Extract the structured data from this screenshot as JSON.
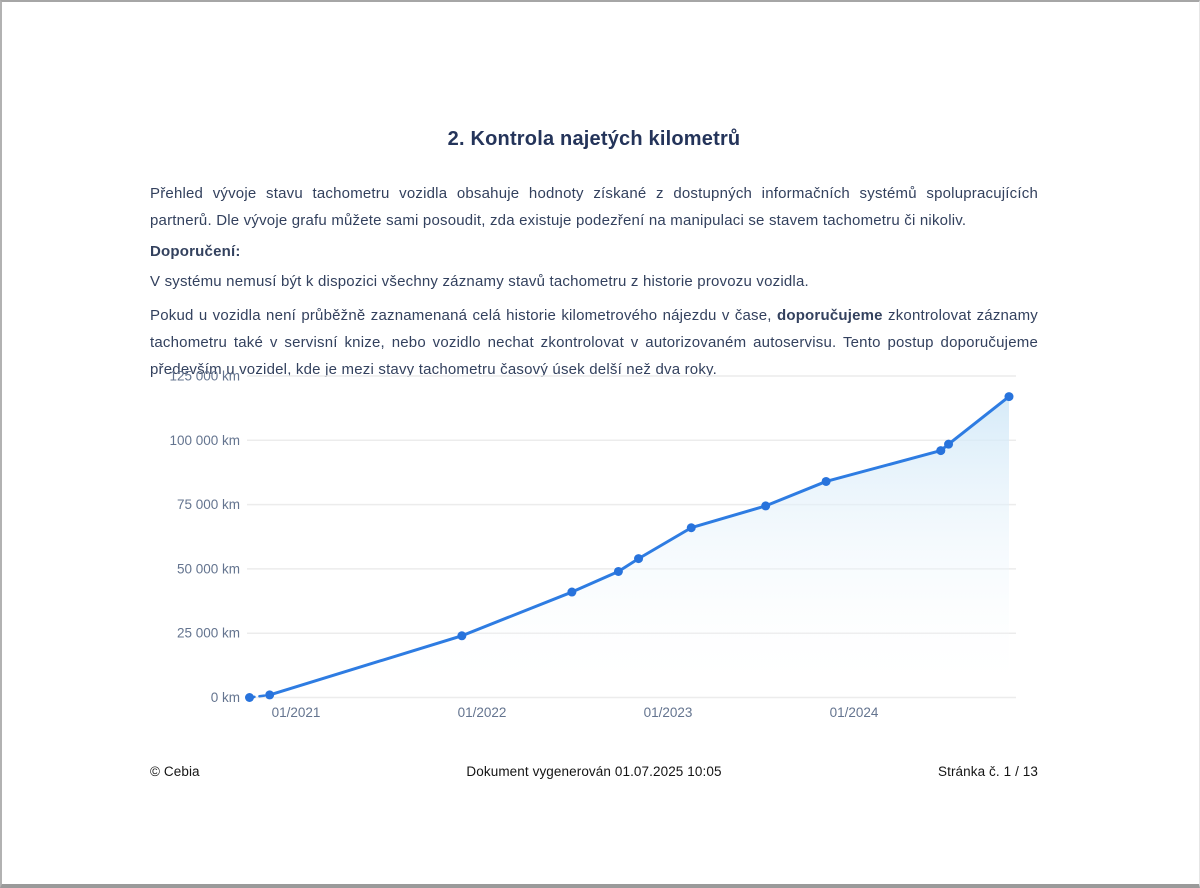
{
  "page": {
    "title": "2. Kontrola najetých kilometrů",
    "paragraphs": {
      "intro": "Přehled vývoje stavu tachometru vozidla obsahuje hodnoty získané z dostupných informačních systémů spolupracujících partnerů. Dle vývoje grafu můžete sami posoudit, zda existuje podezření na manipulaci se stavem tachometru či nikoliv.",
      "recommendation_label": "Doporučení:",
      "note": "V systému nemusí být k dispozici všechny záznamy stavů tachometru z historie provozu vozidla.",
      "advice_before": "Pokud u vozidla není průběžně zaznamenaná celá historie kilometrového nájezdu v čase, ",
      "advice_bold": "doporučujeme",
      "advice_after": " zkontrolovat záznamy tachometru také v servisní knize, nebo vozidlo nechat zkontrolovat v autorizovaném autoservisu. Tento postup doporučujeme především u vozidel, kde je mezi stavy tachometru časový úsek delší než dva roky."
    }
  },
  "footer": {
    "copyright": "© Cebia",
    "generated": "Dokument vygenerován 01.07.2025 10:05",
    "page_number": "Stránka č. 1 / 13"
  },
  "chart_data": {
    "type": "line",
    "title": "",
    "xlabel": "",
    "ylabel": "",
    "unit": "km",
    "ylim": [
      0,
      125000
    ],
    "grid": true,
    "legend": false,
    "y_ticks": [
      0,
      25000,
      50000,
      75000,
      100000,
      125000
    ],
    "y_tick_labels": [
      "0 km",
      "25 000 km",
      "50 000 km",
      "75 000 km",
      "100 000 km",
      "125 000 km"
    ],
    "x_tick_labels": [
      "01/2021",
      "01/2022",
      "01/2023",
      "01/2024"
    ],
    "x_tick_t": [
      3,
      15,
      27,
      39
    ],
    "points": [
      {
        "date": "10/2020",
        "t": 0,
        "km": 0
      },
      {
        "date": "11/2020",
        "t": 1.3,
        "km": 1000
      },
      {
        "date": "11/2021",
        "t": 13.7,
        "km": 24000
      },
      {
        "date": "06/2022",
        "t": 20.8,
        "km": 41000
      },
      {
        "date": "09/2022",
        "t": 23.8,
        "km": 49000
      },
      {
        "date": "11/2022",
        "t": 25.1,
        "km": 54000
      },
      {
        "date": "02/2023",
        "t": 28.5,
        "km": 66000
      },
      {
        "date": "07/2023",
        "t": 33.3,
        "km": 74500
      },
      {
        "date": "11/2023",
        "t": 37.2,
        "km": 84000
      },
      {
        "date": "06/2024",
        "t": 44.6,
        "km": 96000
      },
      {
        "date": "07/2024",
        "t": 45.1,
        "km": 98500
      },
      {
        "date": "11/2024",
        "t": 49.0,
        "km": 117000
      }
    ],
    "dashed_segment": [
      0,
      1
    ],
    "colors": {
      "line": "#2e7ce2",
      "point": "#2873dc",
      "grid": "#ececec",
      "tick_text": "#64748f",
      "area_top": "#cfe7f7"
    }
  }
}
